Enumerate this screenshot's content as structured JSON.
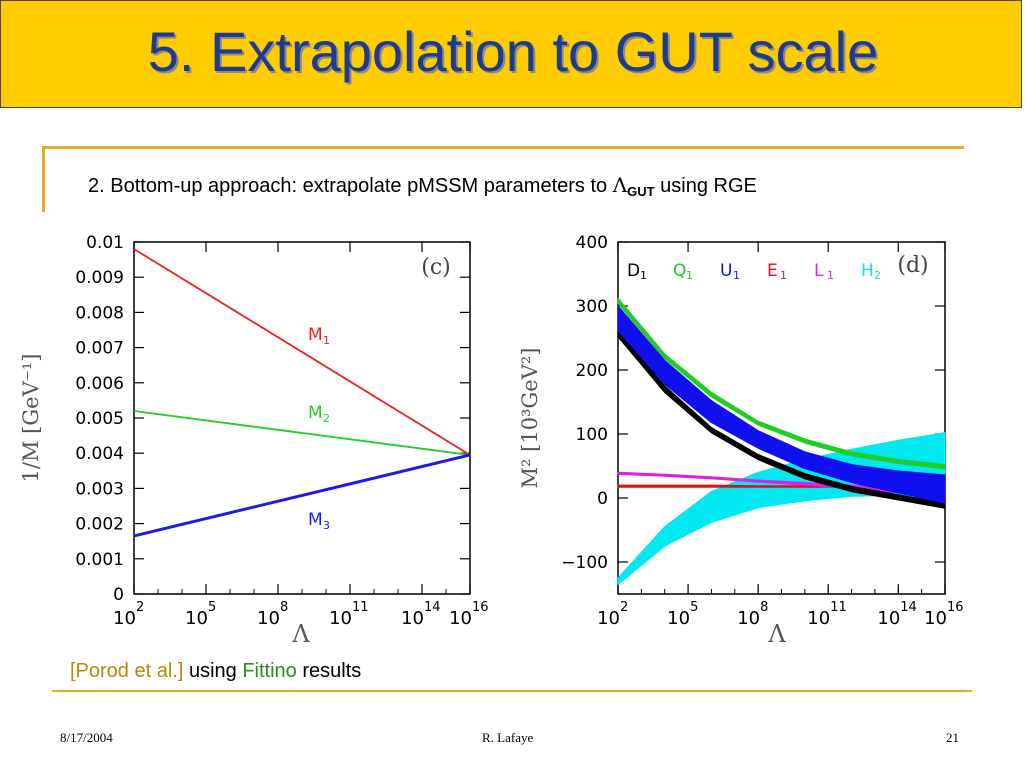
{
  "slide": {
    "title": "5. Extrapolation to GUT scale",
    "subtitle_pre": "2. Bottom-up approach: extrapolate pMSSM parameters to ",
    "subtitle_symbol": "Λ",
    "subtitle_sub": "GUT",
    "subtitle_post": " using RGE",
    "caption_ref": "[Porod et al.]",
    "caption_mid": " using ",
    "caption_fittino": "Fittino",
    "caption_end": " results",
    "footer_date": "8/17/2004",
    "footer_author": "R. Lafaye",
    "footer_page": "21"
  },
  "chart_data": [
    {
      "type": "line",
      "panel": "(c)",
      "xlabel": "Λ",
      "ylabel": "1/M [GeV⁻¹]",
      "xscale": "log",
      "xlim": [
        100,
        1e+16
      ],
      "ylim": [
        0,
        0.01
      ],
      "x_ticks": [
        {
          "base": "10",
          "exp": "2",
          "value": 100.0
        },
        {
          "base": "10",
          "exp": "5",
          "value": 100000.0
        },
        {
          "base": "10",
          "exp": "8",
          "value": 100000000.0
        },
        {
          "base": "10",
          "exp": "11",
          "value": 100000000000.0
        },
        {
          "base": "10",
          "exp": "14",
          "value": 100000000000000.0
        },
        {
          "base": "10",
          "exp": "16",
          "value": 1e+16
        }
      ],
      "y_ticks": [
        "0",
        "0.001",
        "0.002",
        "0.003",
        "0.004",
        "0.005",
        "0.006",
        "0.007",
        "0.008",
        "0.009",
        "0.01"
      ],
      "series": [
        {
          "name": "M",
          "sub": "1",
          "color": "#e8231c",
          "x": [
            100,
            1e+16
          ],
          "y": [
            0.0098,
            0.00395
          ]
        },
        {
          "name": "M",
          "sub": "2",
          "color": "#22cc22",
          "x": [
            100,
            1e+16
          ],
          "y": [
            0.0052,
            0.00395
          ]
        },
        {
          "name": "M",
          "sub": "3",
          "color": "#1a1aee",
          "x": [
            100,
            1e+16
          ],
          "y": [
            0.00165,
            0.00395
          ]
        }
      ]
    },
    {
      "type": "area",
      "panel": "(d)",
      "xlabel": "Λ",
      "ylabel": "M² [10³GeV²]",
      "xscale": "log",
      "xlim": [
        100,
        1e+16
      ],
      "ylim": [
        -150,
        400
      ],
      "x_ticks": [
        {
          "base": "10",
          "exp": "2",
          "value": 100.0
        },
        {
          "base": "10",
          "exp": "5",
          "value": 100000.0
        },
        {
          "base": "10",
          "exp": "8",
          "value": 100000000.0
        },
        {
          "base": "10",
          "exp": "11",
          "value": 100000000000.0
        },
        {
          "base": "10",
          "exp": "14",
          "value": 100000000000000.0
        },
        {
          "base": "10",
          "exp": "16",
          "value": 1e+16
        }
      ],
      "y_ticks": [
        "−100",
        "0",
        "100",
        "200",
        "300",
        "400"
      ],
      "y_tick_values": [
        -100,
        0,
        100,
        200,
        300,
        400
      ],
      "x": [
        100.0,
        10000.0,
        1000000.0,
        100000000.0,
        10000000000.0,
        1000000000000.0,
        100000000000000.0,
        1e+16
      ],
      "series": [
        {
          "name": "D",
          "sub": "1",
          "color": "#000000",
          "upper": [
            262,
            175,
            110,
            68,
            38,
            18,
            5,
            -8
          ],
          "lower": [
            252,
            165,
            102,
            60,
            30,
            10,
            -3,
            -16
          ]
        },
        {
          "name": "Q",
          "sub": "1",
          "color": "#22cc22",
          "upper": [
            312,
            225,
            165,
            120,
            92,
            72,
            60,
            52
          ],
          "lower": [
            304,
            218,
            158,
            114,
            86,
            66,
            54,
            46
          ]
        },
        {
          "name": "U",
          "sub": "1",
          "color": "#1010ee",
          "upper": [
            300,
            215,
            152,
            105,
            72,
            52,
            42,
            36
          ],
          "lower": [
            262,
            178,
            118,
            78,
            46,
            24,
            8,
            -8
          ]
        },
        {
          "name": "E",
          "sub": "1",
          "color": "#dd1111",
          "upper": [
            20,
            20,
            20,
            19,
            19,
            19,
            19,
            18
          ],
          "lower": [
            17,
            17,
            17,
            17,
            17,
            17,
            17,
            16
          ]
        },
        {
          "name": "L",
          "sub": "1",
          "color": "#e020e0",
          "upper": [
            40,
            37,
            33,
            28,
            24,
            20,
            16,
            12
          ],
          "lower": [
            37,
            34,
            30,
            25,
            20,
            15,
            8,
            3
          ]
        },
        {
          "name": "H",
          "sub": "2",
          "color": "#00e8f0",
          "upper": [
            -125,
            -45,
            10,
            40,
            60,
            76,
            90,
            102
          ],
          "lower": [
            -135,
            -75,
            -38,
            -15,
            -4,
            3,
            4,
            3
          ]
        }
      ]
    }
  ]
}
